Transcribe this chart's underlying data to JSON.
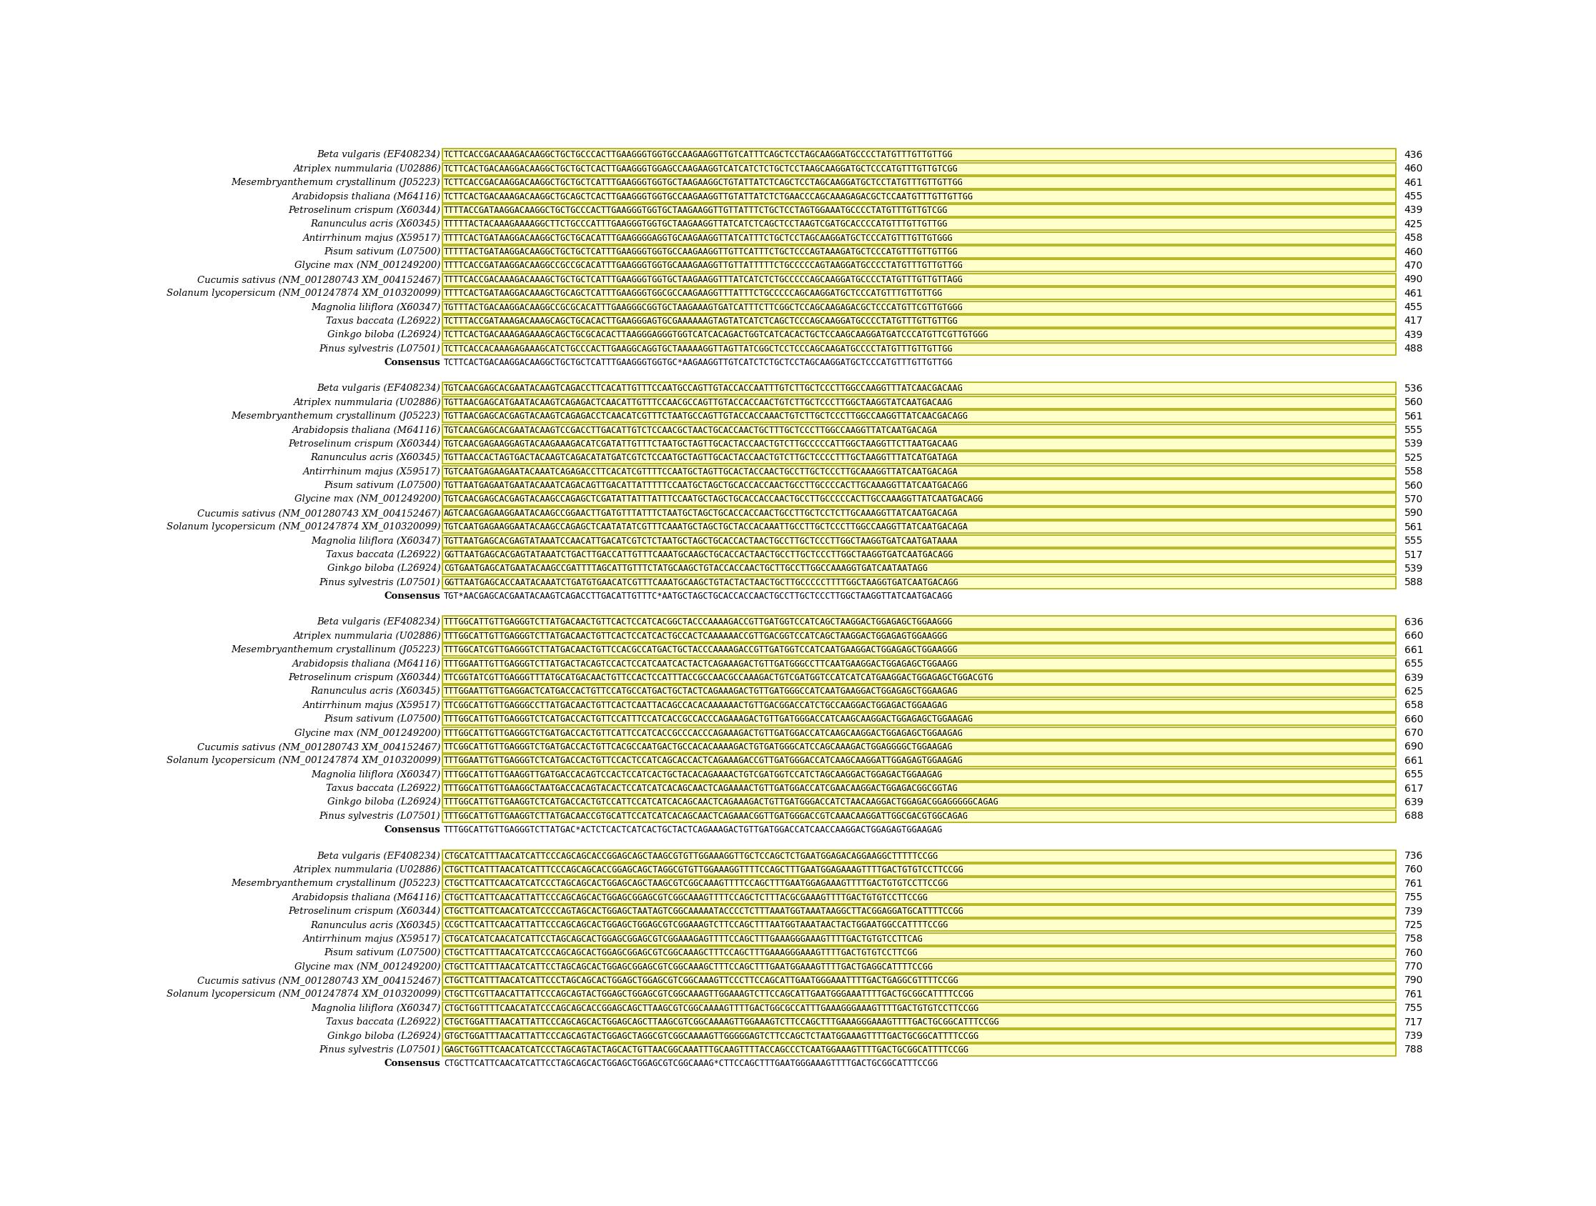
{
  "background_color": "#ffffff",
  "highlight_color": "#FFFFCC",
  "border_color": "#AAAA00",
  "text_color": "#000000",
  "label_font_size": 9.5,
  "seq_font_size": 8.5,
  "num_font_size": 10.0,
  "blocks": [
    {
      "species": [
        {
          "name": "Beta vulgaris (EF408234)",
          "seq": "TCTTCACCGACAAAGACAAGGCTGCTGCCCACTTGAAGGGTGGTGCCAAGAAGGTTGTCATTTCAGCTCCTAGCAAGGATGCCCCTATGTTTGTTGTTGG",
          "num": "436"
        },
        {
          "name": "Atriplex nummularia (U02886)",
          "seq": "TCTTCACTGACAAGGACAAGGCTGCTGCTCACTTGAAGGGTGGAGCCAAGAAGGTCATCATCTCTGCTCCTAAGCAAGGATGCTCCCATGTTTGTTGTCGG",
          "num": "460"
        },
        {
          "name": "Mesembryanthemum crystallinum (J05223)",
          "seq": "TCTTCACCGACAAGGACAAGGCTGCTGCTCATTTGAAGGGTGGTGCTAAGAAGGCTGTATTATCTCAGCTCCTAGCAAGGATGCTCCTATGTTTGTTGTTGG",
          "num": "461"
        },
        {
          "name": "Arabidopsis thaliana (M64116)",
          "seq": "TCTTCACTGACAAAGACAAGGCTGCAGCTCACTTGAAGGGTGGTGCCAAGAAGGTTGTATTATCTCTGAACCCAGCAAAGAGACGCTCCAATGTTTGTTGTTGG",
          "num": "455"
        },
        {
          "name": "Petroselinum crispum (X60344)",
          "seq": "TTTTACCGATAAGGACAAGGCTGCTGCCCACTTGAAGGGTGGTGCTAAGAAGGTTGTTATTTCTGCTCCTAGTGGAAATGCCCCTATGTTTGTTGTCGG",
          "num": "439"
        },
        {
          "name": "Ranunculus acris (X60345)",
          "seq": "TTTTTACTACAAAGAAAAGGCTTCTGCCCATTTGAAGGGTGGTGCTAAGAAGGTTATCATCTCAGCTCCTAAGTCGATGCACCCCATGTTTGTTGTTGG",
          "num": "425"
        },
        {
          "name": "Antirrhinum majus (X59517)",
          "seq": "TTTTCACTGATAAGGACAAGGCTGCTGCACATTTGAAGGGGAGGTGCAAGAAGGTTATCATTTCTGCTCCTAGCAAGGATGCTCCCATGTTTGTTGTGGG",
          "num": "458"
        },
        {
          "name": "Pisum sativum (L07500)",
          "seq": "TTTTTACTGATAAGGACAAGGCTGCTGCTCATTTGAAGGGTGGTGCCAAGAAGGTTGTTCATTTCTGCTCCCAGTAAAGATGCTCCCATGTTTGTTGTTGG",
          "num": "460"
        },
        {
          "name": "Glycine max (NM_001249200)",
          "seq": "TTTTCACCGATAAGGACAAGGCCGCCGCACATTTGAAGGGTGGTGCAAAGAAGGTTGTTATTTTTCTGCCCCCAGTAAGGATGCCCCTATGTTTGTTGTTGG",
          "num": "470"
        },
        {
          "name": "Cucumis sativus (NM_001280743 XM_004152467)",
          "seq": "TTTTCACCGACAAAGACAAAGCTGCTGCTCATTTGAAGGGTGGTGCTAAGAAGGTTTATCATCTCTGCCCCCAGCAAGGATGCCCCTATGTTTGTTGTTAGG",
          "num": "490"
        },
        {
          "name": "Solanum lycopersicum (NM_001247874 XM_010320099)",
          "seq": "TTTTCACTGATAAGGACAAAGCTGCAGCTCATTTGAAGGGTGGCGCCAAGAAGGTTTATTTCTGCCCCCAGCAAGGATGCTCCCATGTTTGTTGTTGG",
          "num": "461"
        },
        {
          "name": "Magnolia liliflora (X60347)",
          "seq": "TGTTTACTGACAAGGACAAGGCCGCGCACATTTGAAGGGCGGTGCTAAGAAAGTGATCATTTCTTCGGCTCCAGCAAGAGACGCTCCCATGTTCGTTGTGGG",
          "num": "455"
        },
        {
          "name": "Taxus baccata (L26922)",
          "seq": "TCTTTACCGATAAAGACAAAGCAGCTGCACACTTGAAGGGAGTGCGAAAAAAGTAGTATCATCTCAGCTCCCAGCAAGGATGCCCCTATGTTTGTTGTTGG",
          "num": "417"
        },
        {
          "name": "Ginkgo biloba (L26924)",
          "seq": "TCTTCACTGACAAAGAGAAAGCAGCTGCGCACACTTAAGGGAGGGTGGTCATCACAGACTGGTCATCACACTGCTCCAAGCAAGGATGATCCCATGTTCGTTGTGGG",
          "num": "439"
        },
        {
          "name": "Pinus sylvestris (L07501)",
          "seq": "TCTTCACCACAAAGAGAAAGCATCTGCCCACTTGAAGGCAGGTGCTAAAAAGGTTAGTTATCGGCTCCTCCCAGCAAGATGCCCCTATGTTTGTTGTTGG",
          "num": "488"
        },
        {
          "name": "Consensus",
          "seq": "TCTTCACTGACAAGGACAAGGCTGCTGCTCATTTGAAGGGTGGTGC*AAGAAGGTTGTCATCTCTGCTCCTAGCAAGGATGCTCCCATGTTTGTTGTTGG",
          "num": null
        }
      ]
    },
    {
      "species": [
        {
          "name": "Beta vulgaris (EF408234)",
          "seq": "TGTCAACGAGCACGAATACAAGTCAGACCTTCACATTGTTTCCAATGCCAGTTGTACCACCAATTTGTCTTGCTCCCTTGGCCAAGGTTTATCAACGACAAG",
          "num": "536"
        },
        {
          "name": "Atriplex nummularia (U02886)",
          "seq": "TGTTAACGAGCATGAATACAAGTCAGAGACTCAACATTGTTTCCAACGCCAGTTGTACCACCAACTGTCTTGCTCCCTTGGCTAAGGTATCAATGACAAG",
          "num": "560"
        },
        {
          "name": "Mesembryanthemum crystallinum (J05223)",
          "seq": "TGTTAACGAGCACGAGTACAAGTCAGAGACCTCAACATCGTTTCTAATGCCAGTTGTACCACCAAACTGTCTTGCTCCCTTGGCCAAGGTTATCAACGACAGG",
          "num": "561"
        },
        {
          "name": "Arabidopsis thaliana (M64116)",
          "seq": "TGTCAACGAGCACGAATACAAGTCCGACCTTGACATTGTCTCCAACGCTAACTGCACCAACTGCTTTGCTCCCTTGGCCAAGGTTATCAATGACAGA",
          "num": "555"
        },
        {
          "name": "Petroselinum crispum (X60344)",
          "seq": "TGTCAACGAGAAGGAGTACAAGAAAGACATCGATATTGTTTCTAATGCTAGTTGCACTACCAACTGTCTTGCCCCCATTGGCTAAGGTTCTTAATGACAAG",
          "num": "539"
        },
        {
          "name": "Ranunculus acris (X60345)",
          "seq": "TGTTAACCACTAGTGACTACAAGTCAGACATATGATCGTCTCCAATGCTAGTTGCACTACCAACTGTCTTGCTCCCCTTTGCTAAGGTTTATCATGATAGA",
          "num": "525"
        },
        {
          "name": "Antirrhinum majus (X59517)",
          "seq": "TGTCAATGAGAAGAATACAAATCAGAGACCTTCACATCGTTTTCCAATGCTAGTTGCACTACCAACTGCCTTGCTCCCTTGCAAAGGTTATCAATGACAGA",
          "num": "558"
        },
        {
          "name": "Pisum sativum (L07500)",
          "seq": "TGTTAATGAGAATGAATACAAATCAGACAGTTGACATTATTTTTCCAATGCTAGCTGCACCACCAACTGCCTTGCCCCACTTGCAAAGGTTATCAATGACAGG",
          "num": "560"
        },
        {
          "name": "Glycine max (NM_001249200)",
          "seq": "TGTCAACGAGCACGAGTACAAGCCAGAGCTCGATATTATTTATTTCCAATGCTAGCTGCACCACCAACTGCCTTGCCCCCACTTGCCAAAGGTTATCAATGACAGG",
          "num": "570"
        },
        {
          "name": "Cucumis sativus (NM_001280743 XM_004152467)",
          "seq": "AGTCAACGAGAAGGAATACAAGCCGGAACTTGATGTTTATTTCTAATGCTAGCTGCACCACCAACTGCCTTGCTCCTCTTGCAAAGGTTATCAATGACAGA",
          "num": "590"
        },
        {
          "name": "Solanum lycopersicum (NM_001247874 XM_010320099)",
          "seq": "TGTCAATGAGAAGGAATACAAGCCAGAGCTCAATATATCGTTTCAAATGCTAGCTGCTACCACAAATTGCCTTGCTCCCTTGGCCAAGGTTATCAATGACAGA",
          "num": "561"
        },
        {
          "name": "Magnolia liliflora (X60347)",
          "seq": "TGTTAATGAGCACGAGTATAAATCCAACATTGACATCGTCTCTAATGCTAGCTGCACCACTAACTGCCTTGCTCCCTTGGCTAAGGTGATCAATGATAAAA",
          "num": "555"
        },
        {
          "name": "Taxus baccata (L26922)",
          "seq": "GGTTAATGAGCACGAGTATAAATCTGACTTGACCATTGTTTCAAATGCAAGCTGCACCACTAACTGCCTTGCTCCCTTGGCTAAGGTGATCAATGACAGG",
          "num": "517"
        },
        {
          "name": "Ginkgo biloba (L26924)",
          "seq": "CGTGAATGAGCATGAATACAAGCCGATTTTAGCATTGTTTCTATGCAAGCTGTACCACCAACTGCTTGCCTTGGCCAAAGGTGATCAATAATAGG",
          "num": "539"
        },
        {
          "name": "Pinus sylvestris (L07501)",
          "seq": "GGTTAATGAGCACCAATACAAATCTGATGTGAACATCGTTTCAAATGCAAGCTGTACTACTAACTGCTTGCCCCCTTTTGGCTAAGGTGATCAATGACAGG",
          "num": "588"
        },
        {
          "name": "Consensus",
          "seq": "TGT*AACGAGCACGAATACAAGTCAGACCTTGACATTGTTTC*AATGCTAGCTGCACCACCAACTGCCTTGCTCCCTTGGCTAAGGTTATCAATGACAGG",
          "num": null
        }
      ]
    },
    {
      "species": [
        {
          "name": "Beta vulgaris (EF408234)",
          "seq": "TTTGGCATTGTTGAGGGTCTTATGACAACTGTTCACTCCATCACGGCTACCCAAAAGACCGTTGATGGTCCATCAGCTAAGGACTGGAGAGCTGGAAGGG",
          "num": "636"
        },
        {
          "name": "Atriplex nummularia (U02886)",
          "seq": "TTTGGCATTGTTGAGGGTCTTATGACAACTGTTCACTCCATCACTGCCACTCAAAAAACCGTTGACGGTCCATCAGCTAAGGACTGGAGAGTGGAAGGG",
          "num": "660"
        },
        {
          "name": "Mesembryanthemum crystallinum (J05223)",
          "seq": "TTTGGCATCGTTGAGGGTCTTATGACAACTGTTCCACGCCATGACTGCTACCCAAAAGACCGTTGATGGTCCATCAATGAAGGACTGGAGAGCTGGAAGGG",
          "num": "661"
        },
        {
          "name": "Arabidopsis thaliana (M64116)",
          "seq": "TTTGGAATTGTTGAGGGTCTTATGACTACAGTCCACTCCATCAATCACTACTCAGAAAGACTGTTGATGGGCCTTCAATGAAGGACTGGAGAGCTGGAAGG",
          "num": "655"
        },
        {
          "name": "Petroselinum crispum (X60344)",
          "seq": "TTCGGTATCGTTGAGGGTTTATGCATGACAACTGTTCCACTCCATTTACCGCCAACGCCAAAGACTGTCGATGGTCCATCATCATGAAGGACTGGAGAGCTGGACGTG",
          "num": "639"
        },
        {
          "name": "Ranunculus acris (X60345)",
          "seq": "TTTGGAATTGTTGAGGACTCATGACCACTGTTCCATGCCATGACTGCTACTCAGAAAGACTGTTGATGGGCCATCAATGAAGGACTGGAGAGCTGGAAGAG",
          "num": "625"
        },
        {
          "name": "Antirrhinum majus (X59517)",
          "seq": "TTCGGCATTGTTGAGGGCCTTATGACAACTGTTCACTCAATTACAGCCACACAAAAAACTGTTGACGGACCATCTGCCAAGGACTGGAGACTGGAAGAG",
          "num": "658"
        },
        {
          "name": "Pisum sativum (L07500)",
          "seq": "TTTGGCATTGTTGAGGGTCTCATGACCACTGTTCCATTTCCATCACCGCCACCCAGAAAGACTGTTGATGGGACCATCAAGCAAGGACTGGAGAGCTGGAAGAG",
          "num": "660"
        },
        {
          "name": "Glycine max (NM_001249200)",
          "seq": "TTTGGCATTGTTGAGGGTCTGATGACCACTGTTCATTCCATCACCGCCCACCCAGAAAGACTGTTGATGGACCATCAAGCAAGGACTGGAGAGCTGGAAGAG",
          "num": "670"
        },
        {
          "name": "Cucumis sativus (NM_001280743 XM_004152467)",
          "seq": "TTCGGCATTGTTGAGGGTCTGATGACCACTGTTCACGCCAATGACTGCCACACAAAAGACTGTGATGGGCATCCAGCAAAGACTGGAGGGGCTGGAAGAG",
          "num": "690"
        },
        {
          "name": "Solanum lycopersicum (NM_001247874 XM_010320099)",
          "seq": "TTTGGAATTGTTGAGGGTCTCATGACCACTGTTCCACTCCATCAGCACCACTCAGAAAGACCGTTGATGGGACCATCAAGCAAGGATTGGAGAGTGGAAGAG",
          "num": "661"
        },
        {
          "name": "Magnolia liliflora (X60347)",
          "seq": "TTTGGCATTGTTGAAGGTTGATGACCACAGTCCACTCCATCACTGCTACACAGAAAACTGTCGATGGTCCATCTAGCAAGGACTGGAGACTGGAAGAG",
          "num": "655"
        },
        {
          "name": "Taxus baccata (L26922)",
          "seq": "TTTGGCATTGTTGAAGGCTAATGACCACAGTACACTCCATCATCACAGCAACTCAGAAAACTGTTGATGGACCATCGAACAAGGACTGGAGACGGCGGTAG",
          "num": "617"
        },
        {
          "name": "Ginkgo biloba (L26924)",
          "seq": "TTTGGCATTGTTGAAGGTCTCATGACCACTGTCCATTCCATCATCACAGCAACTCAGAAAGACTGTTGATGGGACCATCTAACAAGGACTGGAGACGGAGGGGGCAGAG",
          "num": "639"
        },
        {
          "name": "Pinus sylvestris (L07501)",
          "seq": "TTTGGCATTGTTGAAGGTCTTATGACAACCGTGCATTCCATCATCACAGCAACTCAGAAACGGTTGATGGGACCGTCAAACAAGGATTGGCGACGTGGCAGAG",
          "num": "688"
        },
        {
          "name": "Consensus",
          "seq": "TTTGGCATTGTTGAGGGTCTTATGAC*ACTCTCACTCATCACTGCTACTCAGAAAGACTGTTGATGGACCATCAACCAAGGACTGGAGAGTGGAAGAG",
          "num": null
        }
      ]
    },
    {
      "species": [
        {
          "name": "Beta vulgaris (EF408234)",
          "seq": "CTGCATCATTTAACATCATTCCCAGCAGCACCGGAGCAGCTAAGCGTGTTGGAAAGGTTGCTCCAGCTCTGAATGGAGACAGGAAGGCTTTTTCCGG",
          "num": "736"
        },
        {
          "name": "Atriplex nummularia (U02886)",
          "seq": "CTGCTTCATTTAACATCATTTCCCAGCAGCACCGGAGCAGCTAGGCGTGTTGGAAAGGTTTTCCAGCTTTGAATGGAGAAAGTTTTGACTGTGTCCTTCCGG",
          "num": "760"
        },
        {
          "name": "Mesembryanthemum crystallinum (J05223)",
          "seq": "CTGCTTCATTCAACATCATCCCTAGCAGCACTGGAGCAGCTAAGCGTCGGCAAAGTTTTCCAGCTTTGAATGGAGAAAGTTTTGACTGTGTCCTTCCGG",
          "num": "761"
        },
        {
          "name": "Arabidopsis thaliana (M64116)",
          "seq": "CTGCTTCATTCAACATTATTCCCAGCAGCACTGGAGCGGAGCGTCGGCAAAGTTTTCCAGCTCTTTACGCGAAAGTTTTGACTGTGTCCTTCCGG",
          "num": "755"
        },
        {
          "name": "Petroselinum crispum (X60344)",
          "seq": "CTGCTTCATTCAACATCATCCCCAGTAGCACTGGAGCTAATAGTCGGCAAAAATACCCCTCTTTAAATGGTAAATAAGGCTTACGGAGGATGCATTTTCCGG",
          "num": "739"
        },
        {
          "name": "Ranunculus acris (X60345)",
          "seq": "CCGCTTCATTCAACATTATTCCCAGCAGCACTGGAGCTGGAGCGTCGGAAAGTCTTCCAGCTTTAATGGTAAATAACTACTGGAATGGCCATTTTCCGG",
          "num": "725"
        },
        {
          "name": "Antirrhinum majus (X59517)",
          "seq": "CTGCATCATCAACATCATTCCTAGCAGCACTGGAGCGGAGCGTCGGAAAGAGTTTTCCAGCTTTGAAAGGGAAAGTTTTGACTGTGTCCTTCAG",
          "num": "758"
        },
        {
          "name": "Pisum sativum (L07500)",
          "seq": "CTGCTTCATTTAACATCATCCCAGCAGCACTGGAGCGGAGCGTCGGCAAAGCTTTCCAGCTTTGAAAGGGAAAGTTTTGACTGTGTCCTTCGG",
          "num": "760"
        },
        {
          "name": "Glycine max (NM_001249200)",
          "seq": "CTGCTTCATTTAACATCATTCCTAGCAGCACTGGAGCGGAGCGTCGGCAAAGCTTTCCAGCTTTGAATGGAAAGTTTTGACTGAGGCATTTTCCGG",
          "num": "770"
        },
        {
          "name": "Cucumis sativus (NM_001280743 XM_004152467)",
          "seq": "CTGCTTCATTTAACATCATTCCCTAGCAGCACTGGAGCTGGAGCGTCGGCAAAGTTCCCTTCCAGCATTGAATGGGAAATTTTGACTGAGGCGTTTTCCGG",
          "num": "790"
        },
        {
          "name": "Solanum lycopersicum (NM_001247874 XM_010320099)",
          "seq": "CTGCTTCGTTAACATTATTCCCAGCAGTACTGGAGCTGGAGCGTCGGCAAAGTTGGAAAGTCTTCCAGCATTGAATGGGAAATTTTGACTGCGGCATTTTCCGG",
          "num": "761"
        },
        {
          "name": "Magnolia liliflora (X60347)",
          "seq": "CTGCTGGTTTTCAACATATCCCAGCAGCACCGGAGCAGCTTAAGCGTCGGCAAAAGTTTTGACTGGCGCCATTTGAAAGGGAAAGTTTTGACTGTGTCCTTCCGG",
          "num": "755"
        },
        {
          "name": "Taxus baccata (L26922)",
          "seq": "CTGCTGGATTTAACATTATTCCCAGCAGCACTGGAGCAGCTTAAGCGTCGGCAAAAGTTGGAAAGTCTTCCAGCTTTGAAAGGGAAAGTTTTGACTGCGGCATTTCCGG",
          "num": "717"
        },
        {
          "name": "Ginkgo biloba (L26924)",
          "seq": "GTGCTGGATTTAACATTATTCCCAGCAGTACTGGAGCTAGGCGTCGGCAAAAGTTGGGGGAGTCTTCCAGCTCTAATGGAAAGTTTTGACTGCGGCATTTTCCGG",
          "num": "739"
        },
        {
          "name": "Pinus sylvestris (L07501)",
          "seq": "GAGCTGGTTTCAACATCATCCCTAGCAGTACTAGCACTGTTAACGGCAAATTTGCAAGTTTTACCAGCCCTCAATGGAAAGTTTTGACTGCGGCATTTTCCGG",
          "num": "788"
        },
        {
          "name": "Consensus",
          "seq": "CTGCTTCATTCAACATCATTCCTAGCAGCACTGGAGCTGGAGCGTCGGCAAAG*CTTCCAGCTTTGAATGGGAAAGTTTTGACTGCGGCATTTCCGG",
          "num": null
        }
      ]
    }
  ]
}
